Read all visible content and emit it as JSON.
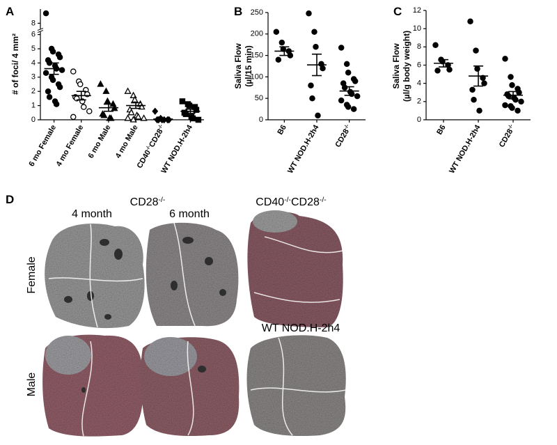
{
  "chart_data": [
    {
      "type": "dotplot",
      "panel_label": "A",
      "ylabel": "# of foci/ 4 mm²",
      "categories": [
        "6 mo Female",
        "4 mo Female",
        "6 mo Male",
        "4 mo Male",
        "CD40-/-CD28-/-",
        "WT NOD.H-2h4"
      ],
      "points": [
        [
          8.7,
          5.0,
          4.8,
          4.6,
          4.4,
          4.2,
          4.0,
          3.8,
          3.6,
          3.5,
          3.3,
          3.0,
          2.8,
          2.5,
          2.3,
          2.0,
          1.6,
          1.3,
          1.1
        ],
        [
          3.4,
          2.7,
          2.5,
          2.1,
          1.8,
          1.6,
          1.5,
          1.3,
          0.9,
          0.6,
          0.2
        ],
        [
          2.5,
          2.0,
          1.3,
          1.1,
          0.8,
          0.4,
          0.3,
          0.1,
          0.1
        ],
        [
          2.0,
          1.7,
          1.4,
          1.1,
          0.9,
          0.7,
          0.5,
          0.3,
          0.2,
          0.1,
          0.1,
          0.0
        ],
        [
          0.6,
          0.1,
          0.0,
          0.0,
          0.0,
          0.0,
          0.0,
          0.0
        ],
        [
          1.3,
          1.1,
          1.0,
          0.9,
          0.7,
          0.5,
          0.4,
          0.2,
          0.1,
          0.0
        ]
      ],
      "means": [
        3.6,
        1.7,
        0.85,
        1.0,
        0.05,
        0.6
      ],
      "sems": [
        0.4,
        0.3,
        0.25,
        0.2,
        0.05,
        0.15
      ],
      "markers": [
        "circle",
        "circle",
        "triangle",
        "triangle",
        "diamond",
        "square"
      ],
      "filled": [
        true,
        false,
        true,
        false,
        true,
        true
      ],
      "color": "#000000",
      "ylim": [
        0,
        9
      ],
      "yticks": [
        0,
        1,
        2,
        3,
        4,
        5,
        6,
        8
      ],
      "axis_break": [
        6.2,
        7.6
      ]
    },
    {
      "type": "dotplot",
      "panel_label": "B",
      "ylabel": [
        "Saliva Flow",
        "(µl/15 min)"
      ],
      "categories": [
        "B6",
        "WT NOD.H-2h4",
        "CD28-/-"
      ],
      "points": [
        [
          205,
          180,
          165,
          160,
          150,
          140
        ],
        [
          248,
          205,
          170,
          130,
          120,
          80,
          50,
          10
        ],
        [
          168,
          130,
          110,
          95,
          90,
          85,
          75,
          65,
          60,
          55,
          45,
          35,
          30,
          25
        ]
      ],
      "means": [
        160,
        128,
        67
      ],
      "sems": [
        10,
        25,
        10
      ],
      "markers": [
        "circle",
        "circle",
        "circle"
      ],
      "filled": [
        true,
        true,
        true
      ],
      "color": "#000000",
      "ylim": [
        0,
        250
      ],
      "yticks": [
        0,
        50,
        100,
        150,
        200,
        250
      ]
    },
    {
      "type": "dotplot",
      "panel_label": "C",
      "ylabel": [
        "Saliva Flow",
        "(µl/g body weight)"
      ],
      "categories": [
        "B6",
        "WT NOD.H-2h4",
        "CD28-/-"
      ],
      "points": [
        [
          8.2,
          6.6,
          6.4,
          6.0,
          5.5,
          5.4
        ],
        [
          10.8,
          7.6,
          5.6,
          4.6,
          4.0,
          3.3,
          2.2,
          1.0
        ],
        [
          6.7,
          4.7,
          3.8,
          3.4,
          3.0,
          2.8,
          2.6,
          2.4,
          2.2,
          2.0,
          1.6,
          1.5,
          1.3,
          1.0
        ]
      ],
      "means": [
        6.2,
        4.8,
        2.7
      ],
      "sems": [
        0.4,
        1.1,
        0.4
      ],
      "markers": [
        "circle",
        "circle",
        "circle"
      ],
      "filled": [
        true,
        true,
        true
      ],
      "color": "#000000",
      "ylim": [
        0,
        12
      ],
      "yticks": [
        0,
        2,
        4,
        6,
        8,
        10,
        12
      ]
    }
  ],
  "panel_d": {
    "panel_label": "D",
    "group_title": "CD28-/-",
    "col_4mo": "4 month",
    "col_6mo": "6 month",
    "col_cd40": "CD40-/-CD28-/-",
    "col_wt": "WT NOD.H-2h4",
    "row_female": "Female",
    "row_male": "Male"
  }
}
